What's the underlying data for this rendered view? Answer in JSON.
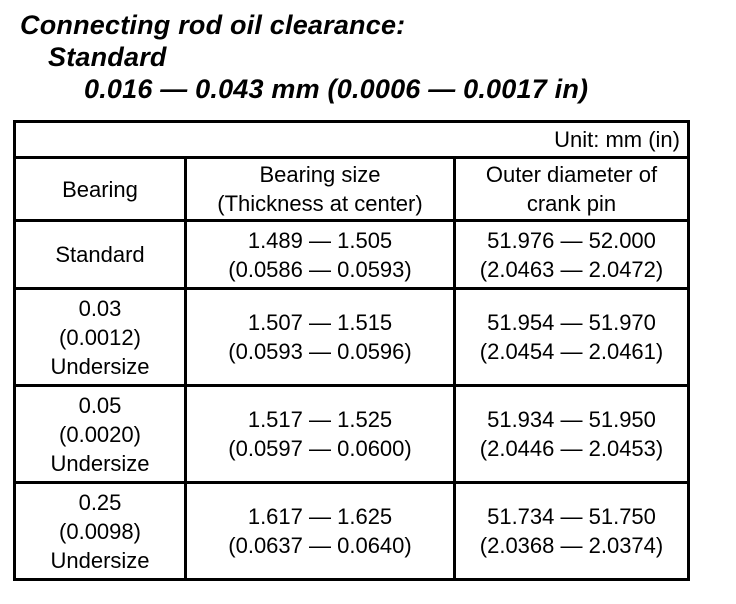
{
  "heading": {
    "title": "Connecting rod oil clearance:",
    "subtitle": "Standard",
    "spec_value": "0.016 — 0.043 mm (0.0006 — 0.0017 in)"
  },
  "table": {
    "unit_note": "Unit: mm (in)",
    "headers": {
      "bearing": "Bearing",
      "bearing_size": "Bearing size\n(Thickness at center)",
      "crank_pin": "Outer diameter of\ncrank pin"
    },
    "rows": [
      {
        "bearing": "Standard",
        "bearing_size": "1.489 — 1.505\n(0.0586 — 0.0593)",
        "crank_pin": "51.976 — 52.000\n(2.0463 — 2.0472)"
      },
      {
        "bearing": "0.03\n(0.0012)\nUndersize",
        "bearing_size": "1.507 — 1.515\n(0.0593 — 0.0596)",
        "crank_pin": "51.954 — 51.970\n(2.0454 — 2.0461)"
      },
      {
        "bearing": "0.05\n(0.0020)\nUndersize",
        "bearing_size": "1.517 — 1.525\n(0.0597 — 0.0600)",
        "crank_pin": "51.934 — 51.950\n(2.0446 — 2.0453)"
      },
      {
        "bearing": "0.25\n(0.0098)\nUndersize",
        "bearing_size": "1.617 — 1.625\n(0.0637 — 0.0640)",
        "crank_pin": "51.734 — 51.750\n(2.0368 — 2.0374)"
      }
    ]
  },
  "colors": {
    "text": "#000000",
    "background": "#ffffff",
    "border": "#000000"
  }
}
